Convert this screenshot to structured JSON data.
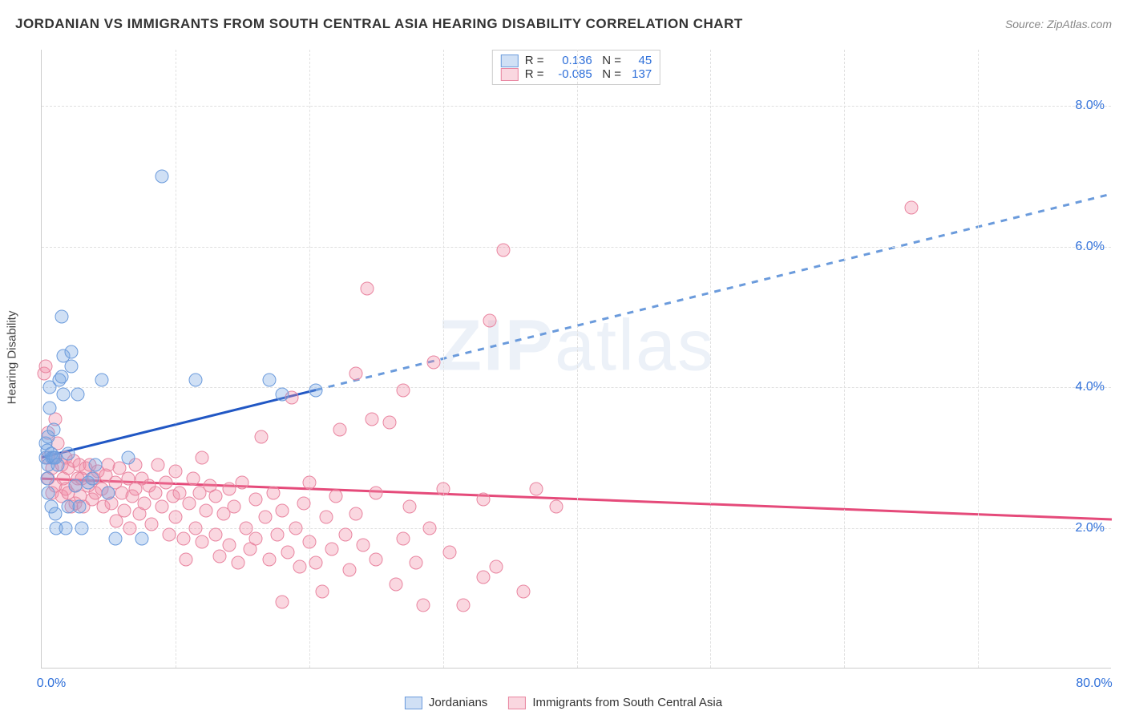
{
  "title": "JORDANIAN VS IMMIGRANTS FROM SOUTH CENTRAL ASIA HEARING DISABILITY CORRELATION CHART",
  "source_label": "Source: ",
  "source_value": "ZipAtlas.com",
  "watermark_bold": "ZIP",
  "watermark_rest": "atlas",
  "y_axis_title": "Hearing Disability",
  "chart": {
    "type": "scatter",
    "xlim": [
      0,
      80
    ],
    "ylim": [
      0,
      8.8
    ],
    "x_ticks": [
      {
        "v": 0,
        "label": "0.0%"
      },
      {
        "v": 80,
        "label": "80.0%"
      }
    ],
    "x_tick_minor": [
      10,
      20,
      30,
      40,
      50,
      60,
      70
    ],
    "y_ticks": [
      {
        "v": 2,
        "label": "2.0%"
      },
      {
        "v": 4,
        "label": "4.0%"
      },
      {
        "v": 6,
        "label": "6.0%"
      },
      {
        "v": 8,
        "label": "8.0%"
      }
    ],
    "y_tick_color": "#2e6fd9",
    "x_tick_color": "#2e6fd9",
    "grid_color": "#e0e0e0",
    "background_color": "#ffffff",
    "series": [
      {
        "id": "blue",
        "label": "Jordanians",
        "R": "0.136",
        "N": "45",
        "fill": "rgba(120,165,225,0.35)",
        "stroke": "#6b9bdc",
        "trend": {
          "x1": 0,
          "y1": 3.0,
          "x_solid_end": 20.5,
          "x2": 80,
          "y2": 6.75,
          "solid_color": "#2157c4",
          "dash_color": "#6b9bdc",
          "width": 3
        },
        "points": [
          [
            0.3,
            3.0
          ],
          [
            0.3,
            3.2
          ],
          [
            0.4,
            2.7
          ],
          [
            0.4,
            3.1
          ],
          [
            0.5,
            2.9
          ],
          [
            0.5,
            3.3
          ],
          [
            0.5,
            2.5
          ],
          [
            0.6,
            4.0
          ],
          [
            0.6,
            3.7
          ],
          [
            0.7,
            3.05
          ],
          [
            0.7,
            2.3
          ],
          [
            0.8,
            3.0
          ],
          [
            0.9,
            3.0
          ],
          [
            0.9,
            3.4
          ],
          [
            1.0,
            2.2
          ],
          [
            1.0,
            3.0
          ],
          [
            1.1,
            2.0
          ],
          [
            1.2,
            2.9
          ],
          [
            1.3,
            4.1
          ],
          [
            1.5,
            4.15
          ],
          [
            1.5,
            5.0
          ],
          [
            1.6,
            4.45
          ],
          [
            1.6,
            3.9
          ],
          [
            1.8,
            2.0
          ],
          [
            2.0,
            3.05
          ],
          [
            2.0,
            2.3
          ],
          [
            2.2,
            4.5
          ],
          [
            2.2,
            4.3
          ],
          [
            2.5,
            2.6
          ],
          [
            2.7,
            3.9
          ],
          [
            2.8,
            2.3
          ],
          [
            3.0,
            2.0
          ],
          [
            3.5,
            2.65
          ],
          [
            3.8,
            2.7
          ],
          [
            4.0,
            2.9
          ],
          [
            4.5,
            4.1
          ],
          [
            5.0,
            2.5
          ],
          [
            5.5,
            1.85
          ],
          [
            6.5,
            3.0
          ],
          [
            7.5,
            1.85
          ],
          [
            9.0,
            7.0
          ],
          [
            11.5,
            4.1
          ],
          [
            17.0,
            4.1
          ],
          [
            18.0,
            3.9
          ],
          [
            20.5,
            3.95
          ]
        ]
      },
      {
        "id": "pink",
        "label": "Immigrants from South Central Asia",
        "R": "-0.085",
        "N": "137",
        "fill": "rgba(240,140,165,0.35)",
        "stroke": "#e985a0",
        "trend": {
          "x1": 0,
          "y1": 2.7,
          "x_solid_end": 80,
          "x2": 80,
          "y2": 2.12,
          "solid_color": "#e54a7a",
          "dash_color": "#e985a0",
          "width": 3
        },
        "points": [
          [
            0.2,
            4.2
          ],
          [
            0.3,
            4.3
          ],
          [
            0.5,
            3.35
          ],
          [
            0.5,
            3.0
          ],
          [
            0.5,
            2.7
          ],
          [
            0.8,
            2.85
          ],
          [
            0.8,
            2.5
          ],
          [
            1.0,
            3.55
          ],
          [
            1.0,
            3.0
          ],
          [
            1.0,
            2.6
          ],
          [
            1.2,
            3.2
          ],
          [
            1.5,
            2.9
          ],
          [
            1.5,
            2.45
          ],
          [
            1.6,
            2.7
          ],
          [
            1.8,
            3.0
          ],
          [
            1.8,
            2.55
          ],
          [
            2.0,
            2.85
          ],
          [
            2.0,
            2.5
          ],
          [
            2.2,
            2.3
          ],
          [
            2.4,
            2.95
          ],
          [
            2.5,
            2.6
          ],
          [
            2.5,
            2.35
          ],
          [
            2.7,
            2.7
          ],
          [
            2.8,
            2.9
          ],
          [
            2.9,
            2.45
          ],
          [
            3.0,
            2.7
          ],
          [
            3.1,
            2.3
          ],
          [
            3.3,
            2.85
          ],
          [
            3.5,
            2.6
          ],
          [
            3.6,
            2.9
          ],
          [
            3.8,
            2.4
          ],
          [
            3.9,
            2.7
          ],
          [
            4.0,
            2.5
          ],
          [
            4.2,
            2.8
          ],
          [
            4.5,
            2.55
          ],
          [
            4.6,
            2.3
          ],
          [
            4.8,
            2.75
          ],
          [
            5.0,
            2.9
          ],
          [
            5.0,
            2.5
          ],
          [
            5.2,
            2.35
          ],
          [
            5.5,
            2.65
          ],
          [
            5.6,
            2.1
          ],
          [
            5.8,
            2.85
          ],
          [
            6.0,
            2.5
          ],
          [
            6.2,
            2.25
          ],
          [
            6.5,
            2.7
          ],
          [
            6.6,
            2.0
          ],
          [
            6.8,
            2.45
          ],
          [
            7.0,
            2.9
          ],
          [
            7.0,
            2.55
          ],
          [
            7.3,
            2.2
          ],
          [
            7.5,
            2.7
          ],
          [
            7.7,
            2.35
          ],
          [
            8.0,
            2.6
          ],
          [
            8.2,
            2.05
          ],
          [
            8.5,
            2.5
          ],
          [
            8.7,
            2.9
          ],
          [
            9.0,
            2.3
          ],
          [
            9.3,
            2.65
          ],
          [
            9.5,
            1.9
          ],
          [
            9.8,
            2.45
          ],
          [
            10.0,
            2.15
          ],
          [
            10.0,
            2.8
          ],
          [
            10.3,
            2.5
          ],
          [
            10.6,
            1.85
          ],
          [
            10.8,
            1.55
          ],
          [
            11.0,
            2.35
          ],
          [
            11.3,
            2.7
          ],
          [
            11.5,
            2.0
          ],
          [
            11.8,
            2.5
          ],
          [
            12.0,
            1.8
          ],
          [
            12.0,
            3.0
          ],
          [
            12.3,
            2.25
          ],
          [
            12.6,
            2.6
          ],
          [
            13.0,
            1.9
          ],
          [
            13.0,
            2.45
          ],
          [
            13.3,
            1.6
          ],
          [
            13.6,
            2.2
          ],
          [
            14.0,
            2.55
          ],
          [
            14.0,
            1.75
          ],
          [
            14.4,
            2.3
          ],
          [
            14.7,
            1.5
          ],
          [
            15.0,
            2.65
          ],
          [
            15.3,
            2.0
          ],
          [
            15.6,
            1.7
          ],
          [
            16.0,
            2.4
          ],
          [
            16.0,
            1.85
          ],
          [
            16.4,
            3.3
          ],
          [
            16.7,
            2.15
          ],
          [
            17.0,
            1.55
          ],
          [
            17.3,
            2.5
          ],
          [
            17.6,
            1.9
          ],
          [
            18.0,
            0.95
          ],
          [
            18.0,
            2.25
          ],
          [
            18.4,
            1.65
          ],
          [
            18.7,
            3.85
          ],
          [
            19.0,
            2.0
          ],
          [
            19.3,
            1.45
          ],
          [
            19.6,
            2.35
          ],
          [
            20.0,
            1.8
          ],
          [
            20.0,
            2.65
          ],
          [
            20.5,
            1.5
          ],
          [
            21.0,
            1.1
          ],
          [
            21.3,
            2.15
          ],
          [
            21.7,
            1.7
          ],
          [
            22.0,
            2.45
          ],
          [
            22.3,
            3.4
          ],
          [
            22.7,
            1.9
          ],
          [
            23.0,
            1.4
          ],
          [
            23.5,
            2.2
          ],
          [
            23.5,
            4.2
          ],
          [
            24.0,
            1.75
          ],
          [
            24.3,
            5.4
          ],
          [
            24.7,
            3.55
          ],
          [
            25.0,
            2.5
          ],
          [
            25.0,
            1.55
          ],
          [
            26.0,
            3.5
          ],
          [
            26.5,
            1.2
          ],
          [
            27.0,
            1.85
          ],
          [
            27.0,
            3.95
          ],
          [
            27.5,
            2.3
          ],
          [
            28.0,
            1.5
          ],
          [
            28.5,
            0.9
          ],
          [
            29.0,
            2.0
          ],
          [
            29.3,
            4.35
          ],
          [
            30.0,
            2.55
          ],
          [
            30.5,
            1.65
          ],
          [
            31.5,
            0.9
          ],
          [
            33.0,
            1.3
          ],
          [
            33.0,
            2.4
          ],
          [
            33.5,
            4.95
          ],
          [
            34.0,
            1.45
          ],
          [
            34.5,
            5.95
          ],
          [
            36.0,
            1.1
          ],
          [
            37.0,
            2.55
          ],
          [
            38.5,
            2.3
          ],
          [
            65.0,
            6.55
          ]
        ]
      }
    ]
  },
  "stats_labels": {
    "R": "R =",
    "N": "N ="
  },
  "stats_value_color": "#2e6fd9"
}
